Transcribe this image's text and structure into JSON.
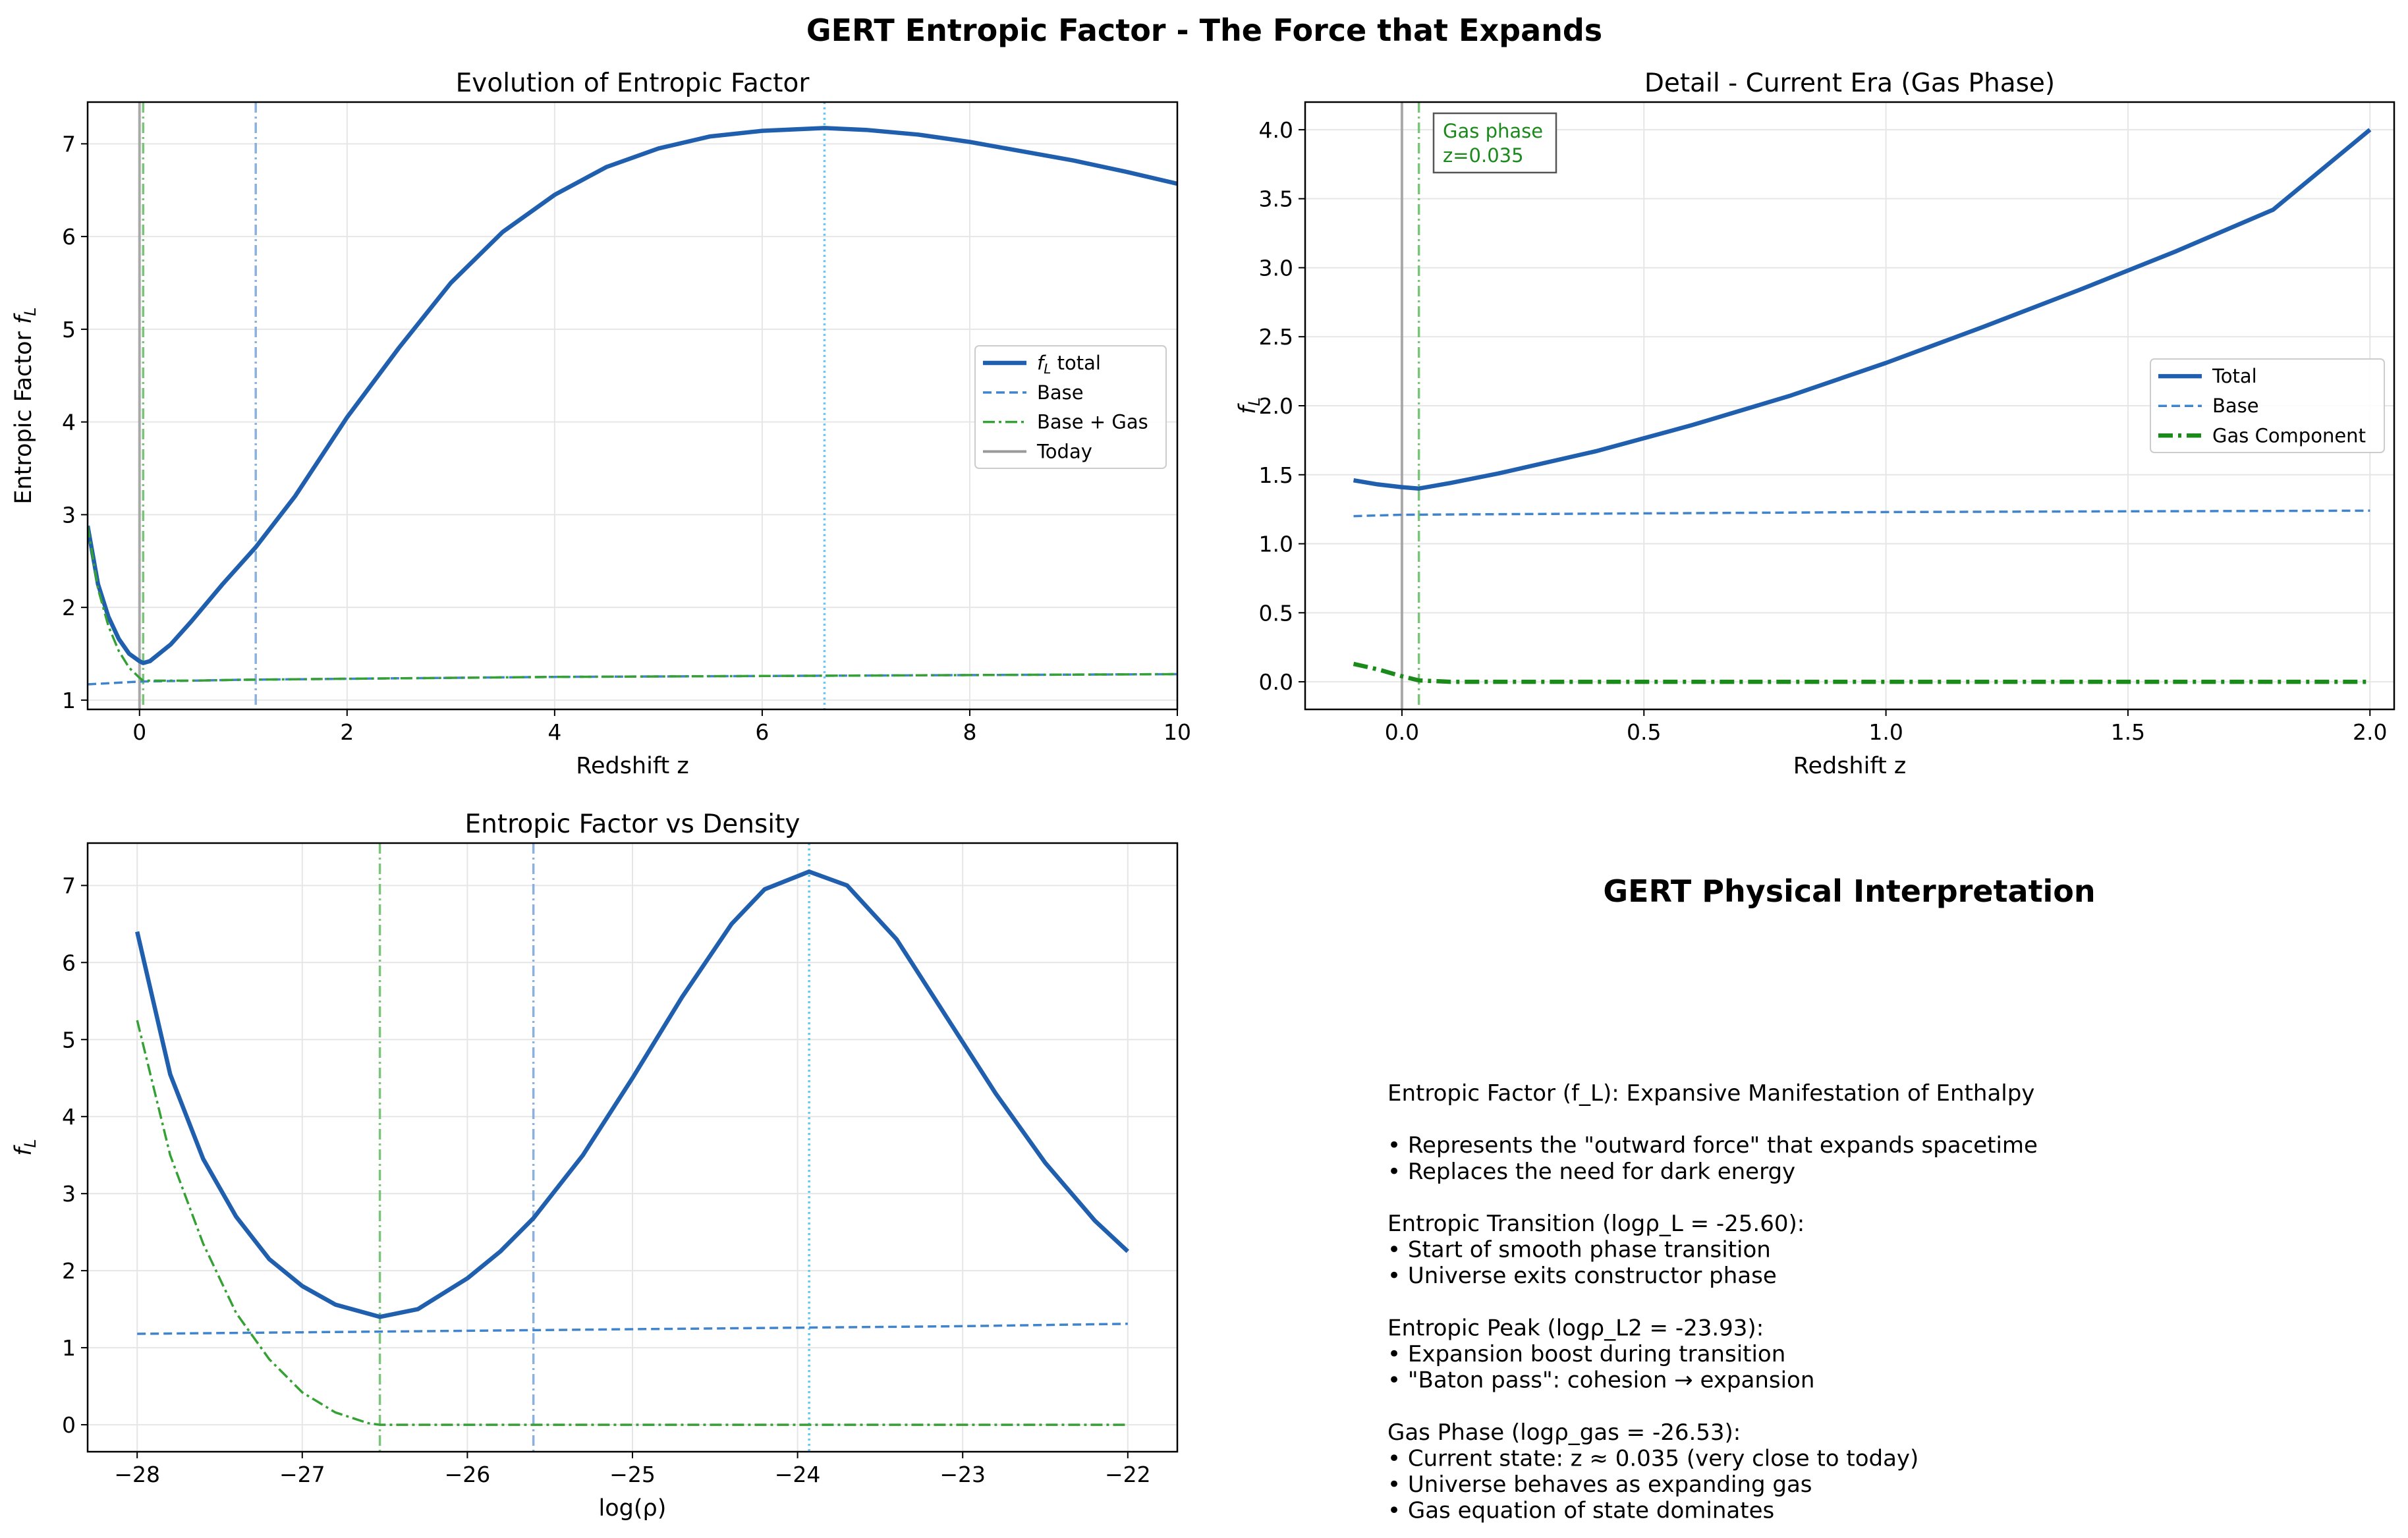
{
  "figure": {
    "suptitle": "GERT Entropic Factor - The Force that Expands"
  },
  "colors": {
    "total": "#1f5fad",
    "base": "#3f84cc",
    "gas": "#35a135",
    "gas_component": "#1a8a1a",
    "today": "#999999",
    "vline_transition": "#7fa8d8",
    "vline_peak": "#5ac8f0",
    "vline_gas": "#6cbf6c",
    "grid": "#e6e6e6"
  },
  "chart_data": [
    {
      "id": "evolution",
      "type": "line",
      "title": "Evolution of Entropic Factor",
      "xlabel": "Redshift z",
      "ylabel_main": "Entropic Factor ",
      "ylabel_math": "f",
      "ylabel_sub": "L",
      "xlim": [
        -0.5,
        10
      ],
      "ylim": [
        0.9,
        7.45
      ],
      "xticks": [
        0,
        2,
        4,
        6,
        8,
        10
      ],
      "yticks": [
        1,
        2,
        3,
        4,
        5,
        6,
        7
      ],
      "grid": true,
      "legend_position": "center-right",
      "series": [
        {
          "name": "f_L total",
          "legend_math": "f",
          "legend_sub": "L",
          "legend_rest": " total",
          "style": "total",
          "x": [
            -0.5,
            -0.4,
            -0.3,
            -0.2,
            -0.1,
            0.0,
            0.035,
            0.1,
            0.3,
            0.5,
            0.8,
            1.12,
            1.5,
            2.0,
            2.5,
            3.0,
            3.5,
            4.0,
            4.5,
            5.0,
            5.5,
            6.0,
            6.6,
            7.0,
            7.5,
            8.0,
            8.5,
            9.0,
            9.5,
            10.0
          ],
          "y": [
            2.88,
            2.25,
            1.9,
            1.66,
            1.5,
            1.42,
            1.4,
            1.42,
            1.6,
            1.85,
            2.25,
            2.65,
            3.2,
            4.05,
            4.8,
            5.5,
            6.05,
            6.45,
            6.75,
            6.95,
            7.08,
            7.14,
            7.17,
            7.15,
            7.1,
            7.02,
            6.92,
            6.82,
            6.7,
            6.57
          ]
        },
        {
          "name": "Base",
          "style": "base",
          "x": [
            -0.5,
            0.0,
            1.0,
            2.0,
            4.0,
            6.0,
            8.0,
            10.0
          ],
          "y": [
            1.17,
            1.2,
            1.22,
            1.23,
            1.25,
            1.26,
            1.27,
            1.28
          ]
        },
        {
          "name": "Base + Gas",
          "style": "gas",
          "x": [
            -0.5,
            -0.4,
            -0.3,
            -0.2,
            -0.1,
            0.0,
            0.035,
            0.1,
            0.5,
            1.0,
            2.0,
            4.0,
            6.0,
            8.0,
            10.0
          ],
          "y": [
            2.88,
            2.2,
            1.8,
            1.53,
            1.35,
            1.24,
            1.21,
            1.21,
            1.21,
            1.22,
            1.23,
            1.25,
            1.26,
            1.27,
            1.28
          ]
        }
      ],
      "vlines": [
        {
          "x": 0.0,
          "style": "today",
          "label": "Today"
        },
        {
          "x": 0.035,
          "style": "gasv"
        },
        {
          "x": 1.12,
          "style": "transition"
        },
        {
          "x": 6.6,
          "style": "peak"
        }
      ]
    },
    {
      "id": "detail",
      "type": "line",
      "title": "Detail - Current Era (Gas Phase)",
      "xlabel": "Redshift z",
      "ylabel_math": "f",
      "ylabel_sub": "L",
      "xlim": [
        -0.2,
        2.05
      ],
      "ylim": [
        -0.2,
        4.2
      ],
      "xticks": [
        0.0,
        0.5,
        1.0,
        1.5,
        2.0
      ],
      "xtick_labels": [
        "0.0",
        "0.5",
        "1.0",
        "1.5",
        "2.0"
      ],
      "yticks": [
        0.0,
        0.5,
        1.0,
        1.5,
        2.0,
        2.5,
        3.0,
        3.5,
        4.0
      ],
      "ytick_labels": [
        "0.0",
        "0.5",
        "1.0",
        "1.5",
        "2.0",
        "2.5",
        "3.0",
        "3.5",
        "4.0"
      ],
      "grid": true,
      "legend_position": "center-right",
      "annotation": {
        "line1": "Gas phase",
        "line2": "z=0.035"
      },
      "series": [
        {
          "name": "Total",
          "style": "total",
          "x": [
            -0.1,
            -0.05,
            0.0,
            0.035,
            0.1,
            0.2,
            0.4,
            0.6,
            0.8,
            1.0,
            1.2,
            1.4,
            1.6,
            1.8,
            2.0
          ],
          "y": [
            1.46,
            1.43,
            1.41,
            1.4,
            1.44,
            1.51,
            1.67,
            1.86,
            2.07,
            2.31,
            2.57,
            2.84,
            3.12,
            3.42,
            4.0
          ]
        },
        {
          "name": "Base",
          "style": "base",
          "x": [
            -0.1,
            0.0,
            0.5,
            1.0,
            1.5,
            2.0
          ],
          "y": [
            1.2,
            1.21,
            1.22,
            1.23,
            1.235,
            1.24
          ]
        },
        {
          "name": "Gas Component",
          "style": "gascomp",
          "x": [
            -0.1,
            -0.05,
            0.0,
            0.035,
            0.1,
            0.5,
            1.0,
            1.5,
            2.0
          ],
          "y": [
            0.13,
            0.09,
            0.04,
            0.01,
            0.0,
            0.0,
            0.0,
            0.0,
            0.0
          ]
        }
      ],
      "vlines": [
        {
          "x": 0.0,
          "style": "today"
        },
        {
          "x": 0.035,
          "style": "gasv"
        }
      ]
    },
    {
      "id": "density",
      "type": "line",
      "title": "Entropic Factor vs Density",
      "xlabel": "log(ρ)",
      "ylabel_math": "f",
      "ylabel_sub": "L",
      "xlim": [
        -28.3,
        -21.7
      ],
      "ylim": [
        -0.35,
        7.55
      ],
      "xticks": [
        -28,
        -27,
        -26,
        -25,
        -24,
        -23,
        -22
      ],
      "xtick_labels": [
        "−28",
        "−27",
        "−26",
        "−25",
        "−24",
        "−23",
        "−22"
      ],
      "yticks": [
        0,
        1,
        2,
        3,
        4,
        5,
        6,
        7
      ],
      "grid": true,
      "series": [
        {
          "name": "Total",
          "style": "total",
          "x": [
            -28.0,
            -27.8,
            -27.6,
            -27.4,
            -27.2,
            -27.0,
            -26.8,
            -26.53,
            -26.3,
            -26.0,
            -25.8,
            -25.6,
            -25.3,
            -25.0,
            -24.7,
            -24.4,
            -24.2,
            -23.93,
            -23.7,
            -23.4,
            -23.1,
            -22.8,
            -22.5,
            -22.2,
            -22.0
          ],
          "y": [
            6.4,
            4.55,
            3.45,
            2.7,
            2.15,
            1.8,
            1.56,
            1.4,
            1.5,
            1.9,
            2.25,
            2.68,
            3.5,
            4.5,
            5.55,
            6.5,
            6.95,
            7.18,
            7.0,
            6.3,
            5.3,
            4.3,
            3.4,
            2.65,
            2.25
          ]
        },
        {
          "name": "Base",
          "style": "base",
          "x": [
            -28.0,
            -27.0,
            -26.0,
            -25.0,
            -24.0,
            -23.0,
            -22.0
          ],
          "y": [
            1.18,
            1.2,
            1.22,
            1.24,
            1.26,
            1.28,
            1.31
          ]
        },
        {
          "name": "Base + Gas",
          "style": "gas",
          "x": [
            -28.0,
            -27.8,
            -27.6,
            -27.4,
            -27.2,
            -27.0,
            -26.8,
            -26.6,
            -26.53,
            -26.0,
            -25.0,
            -24.0,
            -23.0,
            -22.0
          ],
          "y": [
            5.25,
            3.5,
            2.35,
            1.45,
            0.85,
            0.42,
            0.16,
            0.02,
            0.0,
            0.0,
            0.0,
            0.0,
            0.0,
            0.0
          ]
        }
      ],
      "vlines": [
        {
          "x": -26.53,
          "style": "gasv"
        },
        {
          "x": -25.6,
          "style": "transition"
        },
        {
          "x": -23.93,
          "style": "peak"
        }
      ]
    }
  ],
  "interpretation": {
    "title": "GERT Physical Interpretation",
    "lines": [
      "Entropic Factor (f_L): Expansive Manifestation of Enthalpy",
      "",
      "• Represents the \"outward force\" that expands spacetime",
      "• Replaces the need for dark energy",
      "",
      "Entropic Transition (logρ_L = -25.60):",
      "• Start of smooth phase transition",
      "• Universe exits constructor phase",
      "",
      "Entropic Peak (logρ_L2 = -23.93):",
      "• Expansion boost during transition",
      "• \"Baton pass\": cohesion → expansion",
      "",
      "Gas Phase (logρ_gas = -26.53):",
      "• Current state: z ≈ 0.035 (very close to today)",
      "• Universe behaves as expanding gas",
      "• Gas equation of state dominates"
    ]
  }
}
